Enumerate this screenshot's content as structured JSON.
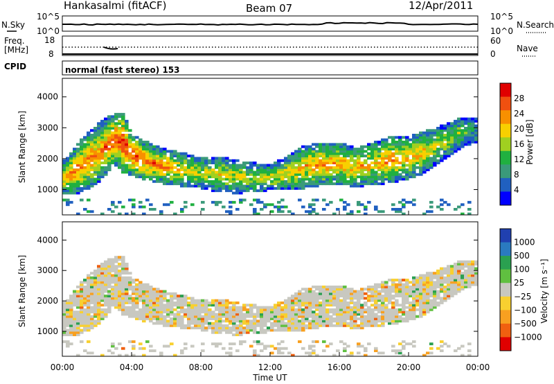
{
  "header": {
    "station": "Hankasalmi (fitACF)",
    "beam": "Beam 07",
    "date": "12/Apr/2011"
  },
  "nsky_panel": {
    "left_label": "N.Sky",
    "right_label": "N.Search",
    "ticks_left": [
      "10^5",
      "10^0"
    ],
    "ticks_right": [
      "10^5",
      "10^0"
    ]
  },
  "freq_panel": {
    "left_label_1": "Freq.",
    "left_label_2": "[MHz]",
    "right_label": "Nave",
    "ticks_left": [
      "18",
      "8"
    ],
    "ticks_right": [
      "60",
      "0"
    ]
  },
  "cpid": {
    "label": "CPID",
    "text": "normal (fast stereo) 153"
  },
  "chart_data": [
    {
      "type": "heatmap",
      "title": "Power",
      "xlabel": "Time UT",
      "ylabel": "Slant Range [km]",
      "colorbar_label": "Power [dB]",
      "x_ticks": [
        "00:00",
        "04:00",
        "08:00",
        "12:00",
        "16:00",
        "20:00",
        "00:00"
      ],
      "xlim_hours": [
        0,
        24
      ],
      "y_ticks": [
        "1000",
        "2000",
        "3000",
        "4000"
      ],
      "ylim": [
        180,
        4600
      ],
      "colorbar_ticks": [
        "4",
        "8",
        "12",
        "16",
        "20",
        "24",
        "28"
      ],
      "colorbar_range": [
        0,
        32
      ],
      "colormap": [
        "#0000ff",
        "#2060c0",
        "#3a9a7a",
        "#20b040",
        "#a0d020",
        "#f8d000",
        "#f89000",
        "#f05010",
        "#e00000"
      ],
      "echo_band": {
        "hours": [
          0.2,
          1.0,
          2.0,
          3.0,
          3.5,
          4.0,
          5.0,
          6.0,
          7.0,
          8.0,
          9.0,
          10.0,
          11.0,
          12.0,
          13.0,
          14.0,
          15.0,
          16.0,
          17.0,
          18.0,
          19.0,
          20.0,
          21.0,
          22.0,
          23.0,
          23.8
        ],
        "center_km": [
          1350,
          1700,
          2100,
          2600,
          2500,
          2100,
          1850,
          1700,
          1600,
          1500,
          1450,
          1400,
          1350,
          1350,
          1500,
          1700,
          1800,
          1800,
          1700,
          1800,
          1950,
          2000,
          2200,
          2500,
          2800,
          2900
        ],
        "width_km": [
          400,
          600,
          700,
          600,
          700,
          500,
          450,
          400,
          400,
          350,
          400,
          400,
          350,
          300,
          400,
          500,
          500,
          500,
          450,
          500,
          550,
          500,
          500,
          400,
          350,
          300
        ],
        "peak_db": [
          22,
          26,
          24,
          27,
          30,
          28,
          26,
          24,
          20,
          18,
          20,
          18,
          16,
          18,
          20,
          22,
          24,
          22,
          22,
          22,
          24,
          22,
          20,
          18,
          16,
          10
        ]
      }
    },
    {
      "type": "heatmap",
      "title": "Velocity",
      "xlabel": "Time UT",
      "ylabel": "Slant Range [km]",
      "colorbar_label": "Velocity  [m s⁻¹]",
      "x_ticks": [
        "00:00",
        "04:00",
        "08:00",
        "12:00",
        "16:00",
        "20:00",
        "00:00"
      ],
      "xlim_hours": [
        0,
        24
      ],
      "y_ticks": [
        "1000",
        "2000",
        "3000",
        "4000"
      ],
      "ylim": [
        180,
        4600
      ],
      "colorbar_ticks": [
        "1000",
        "500",
        "100",
        "25",
        "−25",
        "−100",
        "−500",
        "−1000"
      ],
      "colormap_top_to_bottom": [
        "#2040b0",
        "#2a7ac0",
        "#2aa050",
        "#60c040",
        "#c8c8c0",
        "#f8d030",
        "#f8a020",
        "#f06010",
        "#e00000"
      ],
      "ground_scatter_color": "#c8c8c0"
    }
  ]
}
